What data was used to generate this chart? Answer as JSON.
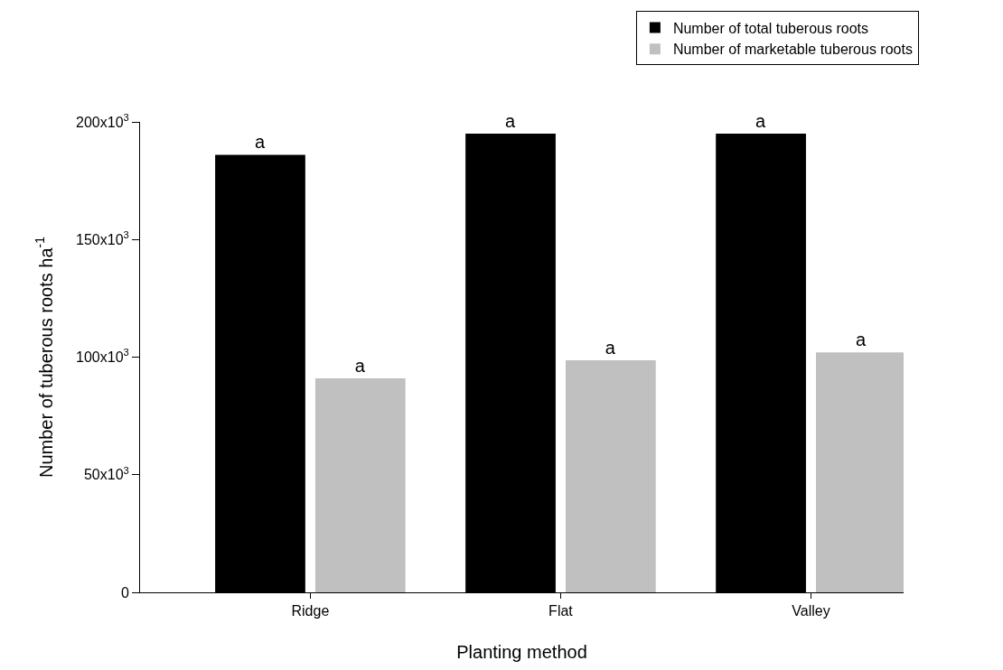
{
  "chart_data": {
    "type": "bar",
    "xlabel": "Planting method",
    "ylabel": "Number of tuberous roots ha$^{-1}$",
    "categories": [
      "Ridge",
      "Flat",
      "Valley"
    ],
    "series": [
      {
        "name": "Number of total tuberous roots",
        "color": "#000000",
        "values": [
          186000,
          195000,
          195000
        ],
        "value_labels": [
          "a",
          "a",
          "a"
        ]
      },
      {
        "name": "Number of marketable tuberous roots",
        "color": "#c0c0c0",
        "values": [
          91000,
          98700,
          102000
        ],
        "value_labels": [
          "a",
          "a",
          "a"
        ]
      }
    ],
    "ylim": [
      0,
      200000
    ],
    "yticks": [
      0,
      {
        "value": 50000,
        "label": "50x10$^{3}$"
      },
      {
        "value": 100000,
        "label": "100x10$^{3}$"
      },
      {
        "value": 150000,
        "label": "150x10$^{3}$"
      },
      {
        "value": 200000,
        "label": "200x10$^{3}$"
      }
    ],
    "grid": false,
    "legend": "top right"
  }
}
